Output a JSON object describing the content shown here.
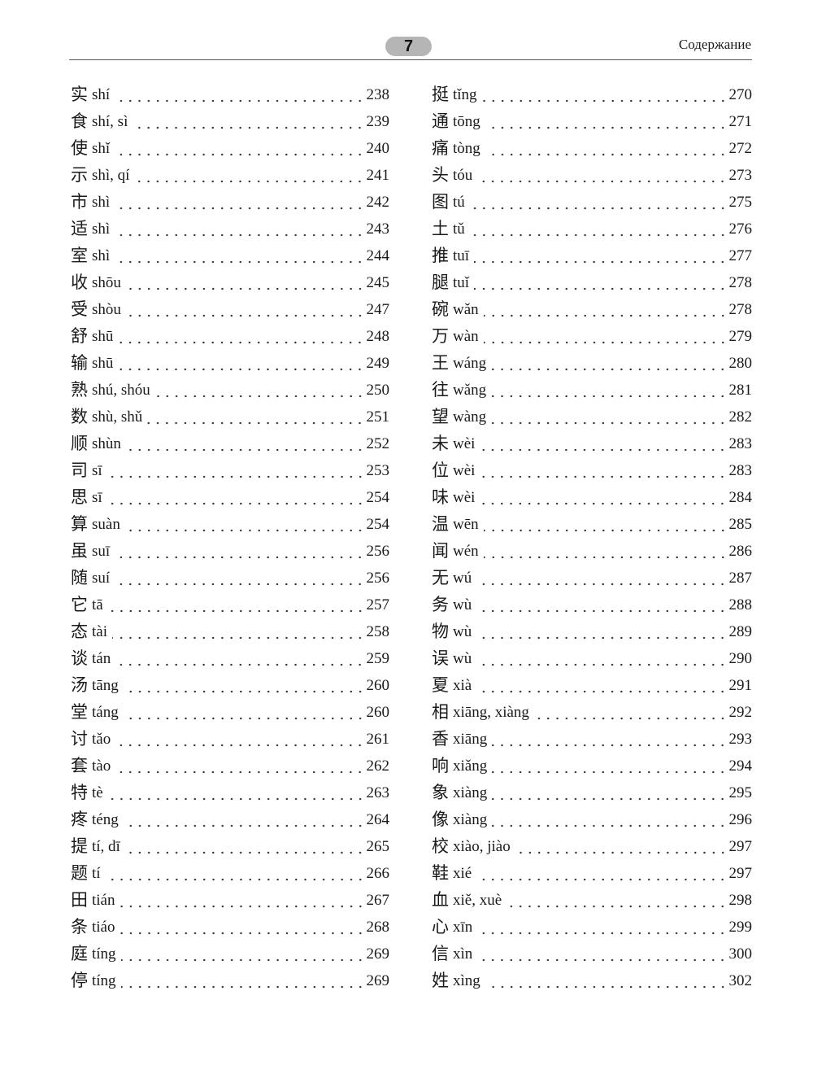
{
  "header": {
    "page_number": "7",
    "section_title": "Содержание"
  },
  "left_column": [
    {
      "char": "实",
      "pinyin": "shí",
      "page": "238"
    },
    {
      "char": "食",
      "pinyin": "shí, sì",
      "page": "239"
    },
    {
      "char": "使",
      "pinyin": "shǐ",
      "page": "240"
    },
    {
      "char": "示",
      "pinyin": "shì, qí",
      "page": "241"
    },
    {
      "char": "市",
      "pinyin": "shì",
      "page": "242"
    },
    {
      "char": "适",
      "pinyin": "shì",
      "page": "243"
    },
    {
      "char": "室",
      "pinyin": "shì",
      "page": "244"
    },
    {
      "char": "收",
      "pinyin": "shōu",
      "page": "245"
    },
    {
      "char": "受",
      "pinyin": "shòu",
      "page": "247"
    },
    {
      "char": "舒",
      "pinyin": "shū",
      "page": "248"
    },
    {
      "char": "输",
      "pinyin": "shū",
      "page": "249"
    },
    {
      "char": "熟",
      "pinyin": "shú, shóu",
      "page": "250"
    },
    {
      "char": "数",
      "pinyin": "shù, shǔ",
      "page": "251"
    },
    {
      "char": "顺",
      "pinyin": "shùn",
      "page": "252"
    },
    {
      "char": "司",
      "pinyin": "sī",
      "page": "253"
    },
    {
      "char": "思",
      "pinyin": "sī",
      "page": "254"
    },
    {
      "char": "算",
      "pinyin": "suàn",
      "page": "254"
    },
    {
      "char": "虽",
      "pinyin": "suī",
      "page": "256"
    },
    {
      "char": "随",
      "pinyin": "suí",
      "page": "256"
    },
    {
      "char": "它",
      "pinyin": "tā",
      "page": "257"
    },
    {
      "char": "态",
      "pinyin": "tài",
      "page": "258"
    },
    {
      "char": "谈",
      "pinyin": "tán",
      "page": "259"
    },
    {
      "char": "汤",
      "pinyin": "tāng",
      "page": "260"
    },
    {
      "char": "堂",
      "pinyin": "táng",
      "page": "260"
    },
    {
      "char": "讨",
      "pinyin": "tǎo",
      "page": "261"
    },
    {
      "char": "套",
      "pinyin": "tào",
      "page": "262"
    },
    {
      "char": "特",
      "pinyin": "tè",
      "page": "263"
    },
    {
      "char": "疼",
      "pinyin": "téng",
      "page": "264"
    },
    {
      "char": "提",
      "pinyin": "tí, dī",
      "page": "265"
    },
    {
      "char": "题",
      "pinyin": "tí",
      "page": "266"
    },
    {
      "char": "田",
      "pinyin": "tián",
      "page": "267"
    },
    {
      "char": "条",
      "pinyin": "tiáo",
      "page": "268"
    },
    {
      "char": "庭",
      "pinyin": "tíng",
      "page": "269"
    },
    {
      "char": "停",
      "pinyin": "tíng",
      "page": "269"
    }
  ],
  "right_column": [
    {
      "char": "挺",
      "pinyin": "tǐng",
      "page": "270"
    },
    {
      "char": "通",
      "pinyin": "tōng",
      "page": "271"
    },
    {
      "char": "痛",
      "pinyin": "tòng",
      "page": "272"
    },
    {
      "char": "头",
      "pinyin": "tóu",
      "page": "273"
    },
    {
      "char": "图",
      "pinyin": "tú",
      "page": "275"
    },
    {
      "char": "土",
      "pinyin": "tǔ",
      "page": "276"
    },
    {
      "char": "推",
      "pinyin": "tuī",
      "page": "277"
    },
    {
      "char": "腿",
      "pinyin": "tuǐ",
      "page": "278"
    },
    {
      "char": "碗",
      "pinyin": "wǎn",
      "page": "278"
    },
    {
      "char": "万",
      "pinyin": "wàn",
      "page": "279"
    },
    {
      "char": "王",
      "pinyin": "wáng",
      "page": "280"
    },
    {
      "char": "往",
      "pinyin": "wǎng",
      "page": "281"
    },
    {
      "char": "望",
      "pinyin": "wàng",
      "page": "282"
    },
    {
      "char": "未",
      "pinyin": "wèi",
      "page": "283"
    },
    {
      "char": "位",
      "pinyin": "wèi",
      "page": "283"
    },
    {
      "char": "味",
      "pinyin": "wèi",
      "page": "284"
    },
    {
      "char": "温",
      "pinyin": "wēn",
      "page": "285"
    },
    {
      "char": "闻",
      "pinyin": "wén",
      "page": "286"
    },
    {
      "char": "无",
      "pinyin": "wú",
      "page": "287"
    },
    {
      "char": "务",
      "pinyin": "wù",
      "page": "288"
    },
    {
      "char": "物",
      "pinyin": "wù",
      "page": "289"
    },
    {
      "char": "误",
      "pinyin": "wù",
      "page": "290"
    },
    {
      "char": "夏",
      "pinyin": "xià",
      "page": "291"
    },
    {
      "char": "相",
      "pinyin": "xiāng, xiàng",
      "page": "292"
    },
    {
      "char": "香",
      "pinyin": "xiāng",
      "page": "293"
    },
    {
      "char": "响",
      "pinyin": "xiǎng",
      "page": "294"
    },
    {
      "char": "象",
      "pinyin": "xiàng",
      "page": "295"
    },
    {
      "char": "像",
      "pinyin": "xiàng",
      "page": "296"
    },
    {
      "char": "校",
      "pinyin": "xiào, jiào",
      "page": "297"
    },
    {
      "char": "鞋",
      "pinyin": "xié",
      "page": "297"
    },
    {
      "char": "血",
      "pinyin": "xiě, xuè",
      "page": "298"
    },
    {
      "char": "心",
      "pinyin": "xīn",
      "page": "299"
    },
    {
      "char": "信",
      "pinyin": "xìn",
      "page": "300"
    },
    {
      "char": "姓",
      "pinyin": "xìng",
      "page": "302"
    }
  ]
}
